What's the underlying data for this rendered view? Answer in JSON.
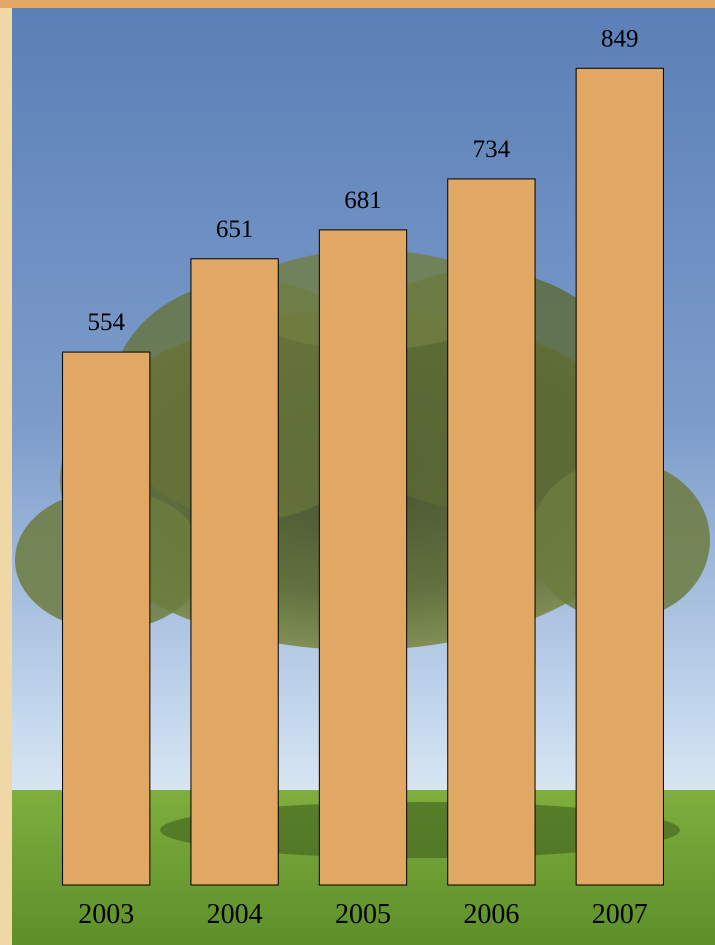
{
  "chart_data": {
    "type": "bar",
    "categories": [
      "2003",
      "2004",
      "2005",
      "2006",
      "2007"
    ],
    "values": [
      554,
      651,
      681,
      734,
      849
    ],
    "color": "#e0a862",
    "ylim": [
      0,
      920
    ]
  }
}
